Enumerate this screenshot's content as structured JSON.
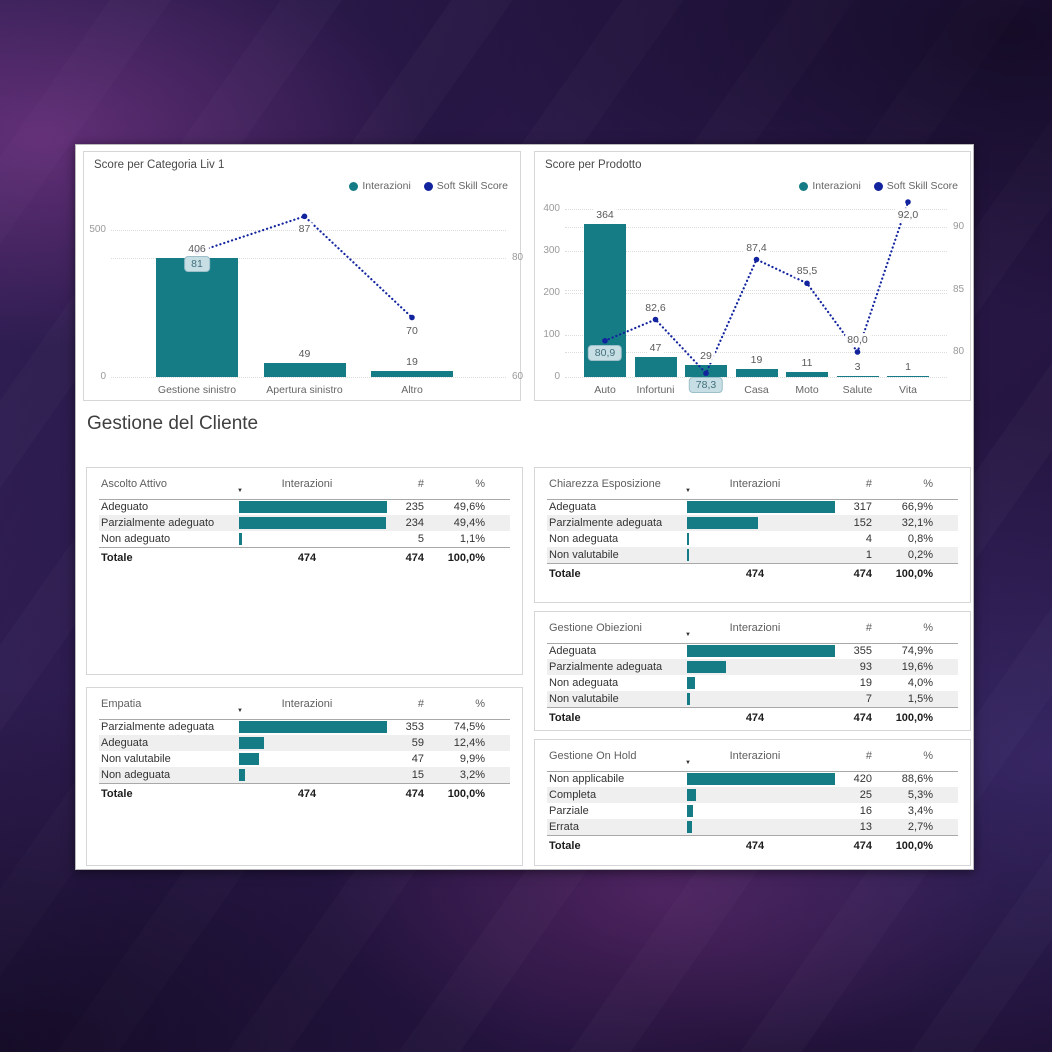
{
  "section_title": "Gestione del Cliente",
  "colors": {
    "bar_teal": "#157c86",
    "line_blue": "#12239e",
    "label_box_bg": "#c8dee5",
    "label_box_border": "#9cbfca",
    "stripe_gray": "#efefef"
  },
  "chart_data": [
    {
      "type": "bar+line",
      "title": "Score per Categoria Liv 1",
      "categories": [
        "Gestione sinistro",
        "Apertura sinistro",
        "Altro"
      ],
      "series": [
        {
          "name": "Interazioni",
          "type": "bar",
          "values": [
            406,
            49,
            19
          ],
          "labels": [
            "406",
            "49",
            "19"
          ]
        },
        {
          "name": "Soft Skill Score",
          "type": "line",
          "values": [
            81,
            87,
            70
          ],
          "labels": [
            "81",
            "87",
            "70"
          ],
          "label_style": [
            "boxed",
            "plain",
            "plain"
          ],
          "label_pos": [
            "below",
            "below",
            "below"
          ]
        }
      ],
      "left_axis": {
        "ticks": [
          500,
          0
        ],
        "min": 0,
        "max": 500
      },
      "right_axis": {
        "ticks": [
          80,
          60
        ],
        "min": 60,
        "max": 80
      },
      "grid": true,
      "legend_position": "top-right"
    },
    {
      "type": "bar+line",
      "title": "Score per Prodotto",
      "categories": [
        "Auto",
        "Infortuni",
        "Altro",
        "Casa",
        "Moto",
        "Salute",
        "Vita"
      ],
      "series": [
        {
          "name": "Interazioni",
          "type": "bar",
          "values": [
            364,
            47,
            29,
            19,
            11,
            3,
            1
          ],
          "labels": [
            "364",
            "47",
            "29",
            "19",
            "11",
            "3",
            "1"
          ]
        },
        {
          "name": "Soft Skill Score",
          "type": "line",
          "values": [
            80.9,
            82.6,
            78.3,
            87.4,
            85.5,
            80.0,
            92.0
          ],
          "labels": [
            "80,9",
            "82,6",
            "78,3",
            "87,4",
            "85,5",
            "80,0",
            "92,0"
          ],
          "label_style": [
            "boxed",
            "plain",
            "boxed",
            "plain",
            "plain",
            "plain",
            "plain"
          ],
          "label_pos": [
            "below",
            "above",
            "below",
            "above",
            "above",
            "above",
            "below"
          ]
        }
      ],
      "left_axis": {
        "ticks": [
          400,
          300,
          200,
          100,
          0
        ],
        "min": 0,
        "max": 400
      },
      "right_axis": {
        "ticks": [
          90,
          85,
          80
        ],
        "min": 78,
        "max": 92.8
      },
      "grid": true,
      "legend_position": "top-right"
    }
  ],
  "tables": [
    {
      "title": "Ascolto Attivo",
      "col_bar": "Interazioni",
      "col_count": "#",
      "col_pct": "%",
      "rows": [
        {
          "label": "Adeguato",
          "count": 235,
          "pct": "49,6%"
        },
        {
          "label": "Parzialmente adeguato",
          "count": 234,
          "pct": "49,4%"
        },
        {
          "label": "Non adeguato",
          "count": 5,
          "pct": "1,1%"
        }
      ],
      "total": {
        "label": "Totale",
        "interazioni": "474",
        "count": "474",
        "pct": "100,0%"
      }
    },
    {
      "title": "Empatia",
      "col_bar": "Interazioni",
      "col_count": "#",
      "col_pct": "%",
      "rows": [
        {
          "label": "Parzialmente adeguata",
          "count": 353,
          "pct": "74,5%"
        },
        {
          "label": "Adeguata",
          "count": 59,
          "pct": "12,4%"
        },
        {
          "label": "Non valutabile",
          "count": 47,
          "pct": "9,9%"
        },
        {
          "label": "Non adeguata",
          "count": 15,
          "pct": "3,2%"
        }
      ],
      "total": {
        "label": "Totale",
        "interazioni": "474",
        "count": "474",
        "pct": "100,0%"
      }
    },
    {
      "title": "Chiarezza Esposizione",
      "col_bar": "Interazioni",
      "col_count": "#",
      "col_pct": "%",
      "rows": [
        {
          "label": "Adeguata",
          "count": 317,
          "pct": "66,9%"
        },
        {
          "label": "Parzialmente adeguata",
          "count": 152,
          "pct": "32,1%"
        },
        {
          "label": "Non adeguata",
          "count": 4,
          "pct": "0,8%"
        },
        {
          "label": "Non valutabile",
          "count": 1,
          "pct": "0,2%"
        }
      ],
      "total": {
        "label": "Totale",
        "interazioni": "474",
        "count": "474",
        "pct": "100,0%"
      }
    },
    {
      "title": "Gestione Obiezioni",
      "col_bar": "Interazioni",
      "col_count": "#",
      "col_pct": "%",
      "rows": [
        {
          "label": "Adeguata",
          "count": 355,
          "pct": "74,9%"
        },
        {
          "label": "Parzialmente adeguata",
          "count": 93,
          "pct": "19,6%"
        },
        {
          "label": "Non adeguata",
          "count": 19,
          "pct": "4,0%"
        },
        {
          "label": "Non valutabile",
          "count": 7,
          "pct": "1,5%"
        }
      ],
      "total": {
        "label": "Totale",
        "interazioni": "474",
        "count": "474",
        "pct": "100,0%"
      }
    },
    {
      "title": "Gestione On Hold",
      "col_bar": "Interazioni",
      "col_count": "#",
      "col_pct": "%",
      "rows": [
        {
          "label": "Non applicabile",
          "count": 420,
          "pct": "88,6%"
        },
        {
          "label": "Completa",
          "count": 25,
          "pct": "5,3%"
        },
        {
          "label": "Parziale",
          "count": 16,
          "pct": "3,4%"
        },
        {
          "label": "Errata",
          "count": 13,
          "pct": "2,7%"
        }
      ],
      "total": {
        "label": "Totale",
        "interazioni": "474",
        "count": "474",
        "pct": "100,0%"
      }
    }
  ]
}
